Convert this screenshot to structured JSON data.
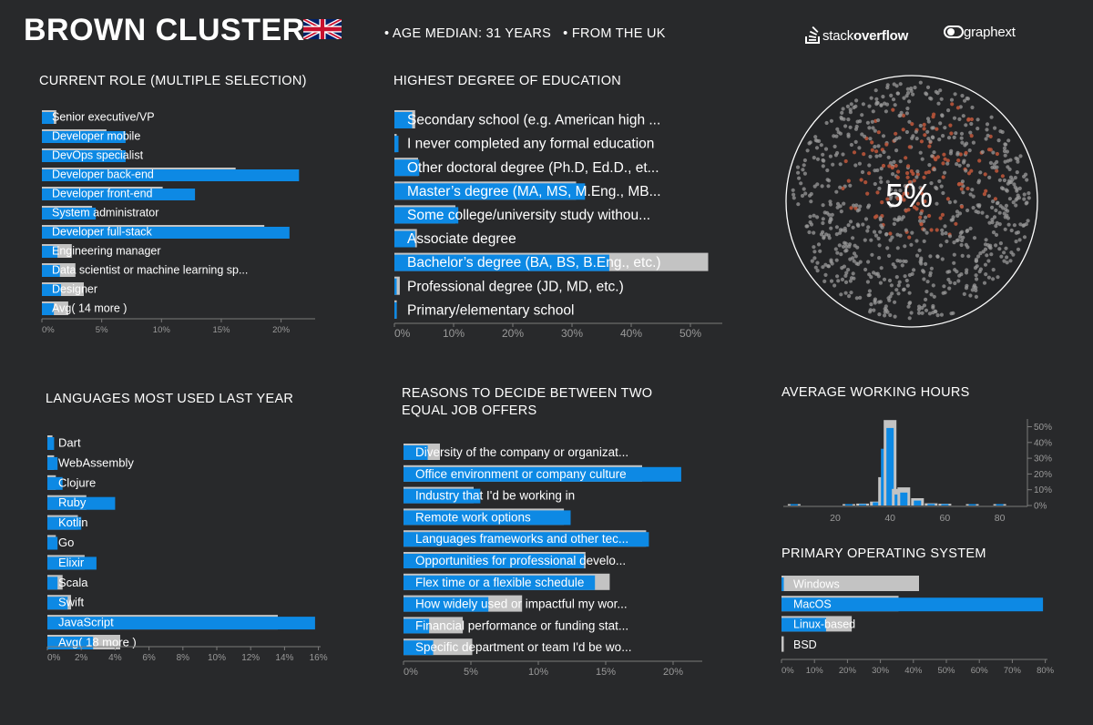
{
  "header": {
    "title": "BROWN CLUSTER",
    "age_median": "AGE MEDIAN: 31 YEARS",
    "from": "FROM THE UK",
    "logo_stackoverflow_pre": "stack",
    "logo_stackoverflow_post": "overflow",
    "logo_graphext": "graphext"
  },
  "colors": {
    "cluster": "#0d89e4",
    "average": "#c3c3c3",
    "background": "#28292b",
    "cluster_dot": "#b8543a",
    "other_dot": "#9a9a9a"
  },
  "sections": {
    "current_role": "CURRENT ROLE (MULTIPLE SELECTION)",
    "education": "HIGHEST DEGREE OF EDUCATION",
    "languages": "LANGUAGES MOST USED LAST YEAR",
    "reasons_line1": "REASONS TO DECIDE BETWEEN TWO",
    "reasons_line2": "EQUAL JOB OFFERS",
    "working_hours": "AVERAGE WORKING HOURS",
    "os": "PRIMARY OPERATING SYSTEM"
  },
  "network": {
    "percent": "5%"
  },
  "chart_data": [
    {
      "id": "current_role",
      "type": "bar",
      "orientation": "horizontal",
      "xlim": [
        0,
        22
      ],
      "ticks": [
        0,
        5,
        10,
        15,
        20
      ],
      "categories": [
        "Senior executive/VP",
        "Developer mobile",
        "DevOps specialist",
        "Developer back-end",
        "Developer front-end",
        "System administrator",
        "Developer full-stack",
        "Engineering manager",
        "Data scientist or machine learning sp...",
        "Designer",
        "Avg( 14 more )"
      ],
      "series": [
        {
          "role": "cluster",
          "values": [
            1.0,
            7.0,
            7.0,
            21.5,
            12.8,
            4.5,
            20.7,
            1.3,
            1.5,
            1.6,
            1.0
          ]
        },
        {
          "role": "average",
          "values": [
            1.2,
            5.4,
            6.6,
            16.2,
            10.1,
            4.2,
            18.6,
            2.5,
            2.8,
            3.5,
            2.2
          ]
        }
      ]
    },
    {
      "id": "education",
      "type": "bar",
      "orientation": "horizontal",
      "xlim": [
        0,
        55
      ],
      "ticks": [
        0,
        10,
        20,
        30,
        40,
        50
      ],
      "categories": [
        "Secondary school (e.g. American high ...",
        "I never completed any formal education",
        "Other doctoral degree (Ph.D, Ed.D., et...",
        "Master’s degree (MA, MS, M.Eng., MB...",
        "Some college/university study withou...",
        "Associate degree",
        "Bachelor’s degree (BA, BS, B.Eng., etc.)",
        "Professional degree (JD, MD, etc.)",
        "Primary/elementary school"
      ],
      "series": [
        {
          "role": "cluster",
          "values": [
            3.0,
            0.7,
            4.2,
            32.2,
            10.8,
            3.5,
            36.3,
            0.3,
            0.1
          ]
        },
        {
          "role": "average",
          "values": [
            3.5,
            0.3,
            4.0,
            30.7,
            10.3,
            3.8,
            53.0,
            0.9,
            0.4
          ]
        }
      ]
    },
    {
      "id": "languages",
      "type": "bar",
      "orientation": "horizontal",
      "xlim": [
        0,
        16
      ],
      "ticks": [
        0,
        2,
        4,
        6,
        8,
        10,
        12,
        14,
        16
      ],
      "tick_labels": [
        "0%",
        "2%",
        "4%",
        "6%",
        "8%",
        "10%",
        "12%",
        "14%",
        "16%"
      ],
      "categories": [
        "Dart",
        "WebAssembly",
        "Clojure",
        "Ruby",
        "Kotlin",
        "Go",
        "Elixir",
        "Scala",
        "Swift",
        "JavaScript",
        "Avg( 18 more )"
      ],
      "series": [
        {
          "role": "cluster",
          "values": [
            0.4,
            0.6,
            0.9,
            4.0,
            2.0,
            0.6,
            2.9,
            0.6,
            1.2,
            15.8,
            2.7
          ]
        },
        {
          "role": "average",
          "values": [
            0.3,
            0.4,
            0.5,
            2.3,
            1.8,
            0.5,
            2.2,
            0.9,
            1.4,
            13.6,
            4.3
          ]
        }
      ]
    },
    {
      "id": "reasons",
      "type": "bar",
      "orientation": "horizontal",
      "xlim": [
        0,
        22
      ],
      "ticks": [
        0,
        5,
        10,
        15,
        20
      ],
      "categories": [
        "Diversity of the company or organizat...",
        "Office environment or company culture",
        "Industry that I'd be working in",
        "Remote work options",
        "Languages frameworks and other tec...",
        "Opportunities for professional develo...",
        "Flex time or a flexible schedule",
        "How widely used or impactful my wor...",
        "Financial performance or funding stat...",
        "Specific department or team I'd be wo..."
      ],
      "series": [
        {
          "role": "cluster",
          "values": [
            1.8,
            20.6,
            5.7,
            12.4,
            18.2,
            13.4,
            14.2,
            6.3,
            1.9,
            2.2
          ]
        },
        {
          "role": "average",
          "values": [
            2.7,
            17.7,
            5.2,
            11.9,
            18.0,
            13.5,
            15.3,
            8.8,
            4.4,
            5.1
          ]
        }
      ]
    },
    {
      "id": "working_hours",
      "type": "bar",
      "orientation": "vertical",
      "ylim": [
        0,
        52
      ],
      "yticks": [
        0,
        10,
        20,
        30,
        40,
        50
      ],
      "xticks": [
        20,
        40,
        60,
        80
      ],
      "categories": [
        5,
        10,
        15,
        20,
        25,
        30,
        35,
        38,
        40,
        43,
        45,
        50,
        55,
        60,
        65,
        70,
        75,
        80
      ],
      "series": [
        {
          "role": "average",
          "values": [
            0.6,
            0,
            0,
            0,
            0.6,
            1.2,
            2.5,
            18.0,
            54.2,
            10.5,
            11.5,
            4.6,
            1.4,
            1.1,
            0,
            0.6,
            0,
            0.5
          ]
        },
        {
          "role": "cluster",
          "values": [
            0.7,
            0,
            0,
            0,
            0.4,
            0.8,
            2.0,
            36.0,
            49.2,
            7.0,
            8.2,
            3.1,
            1.0,
            0.8,
            0,
            0.5,
            0,
            0.4
          ]
        }
      ]
    },
    {
      "id": "os",
      "type": "bar",
      "orientation": "horizontal",
      "xlim": [
        0,
        80
      ],
      "ticks": [
        0,
        10,
        20,
        30,
        40,
        50,
        60,
        70,
        80
      ],
      "categories": [
        "Windows",
        "MacOS",
        "Linux-based",
        "BSD"
      ],
      "series": [
        {
          "role": "cluster",
          "values": [
            0.5,
            79.3,
            13.5,
            0
          ]
        },
        {
          "role": "average",
          "values": [
            41.7,
            35.5,
            21.3,
            0.2
          ]
        }
      ]
    }
  ]
}
